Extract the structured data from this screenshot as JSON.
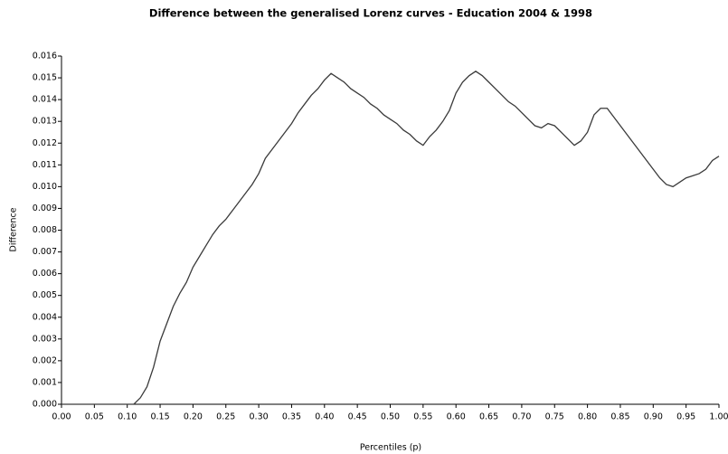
{
  "chart_data": {
    "type": "line",
    "title": "Difference between the generalised Lorenz curves - Education 2004 & 1998",
    "x_label": "Percentiles (p)",
    "y_label": "Difference",
    "color": "#3a3a3a",
    "x": [
      0,
      0.01,
      0.02,
      0.03,
      0.04,
      0.05,
      0.06,
      0.07,
      0.08,
      0.09,
      0.1,
      0.11,
      0.12,
      0.13,
      0.14,
      0.15,
      0.16,
      0.17,
      0.18,
      0.19,
      0.2,
      0.21,
      0.22,
      0.23,
      0.24,
      0.25,
      0.26,
      0.27,
      0.28,
      0.29,
      0.3,
      0.31,
      0.32,
      0.33,
      0.34,
      0.35,
      0.36,
      0.37,
      0.38,
      0.39,
      0.4,
      0.41,
      0.42,
      0.43,
      0.44,
      0.45,
      0.46,
      0.47,
      0.48,
      0.49,
      0.5,
      0.51,
      0.52,
      0.53,
      0.54,
      0.55,
      0.56,
      0.57,
      0.58,
      0.59,
      0.6,
      0.61,
      0.62,
      0.63,
      0.64,
      0.65,
      0.66,
      0.67,
      0.68,
      0.69,
      0.7,
      0.71,
      0.72,
      0.73,
      0.74,
      0.75,
      0.76,
      0.77,
      0.78,
      0.79,
      0.8,
      0.81,
      0.82,
      0.83,
      0.84,
      0.85,
      0.86,
      0.87,
      0.88,
      0.89,
      0.9,
      0.91,
      0.92,
      0.93,
      0.94,
      0.95,
      0.96,
      0.97,
      0.98,
      0.99,
      1
    ],
    "values": [
      0,
      0,
      0,
      0,
      0,
      0,
      0,
      0,
      0,
      0,
      0,
      0,
      0.0003,
      0.0008,
      0.0017,
      0.0029,
      0.0037,
      0.0045,
      0.0051,
      0.0056,
      0.0063,
      0.0068,
      0.0073,
      0.0078,
      0.0082,
      0.0085,
      0.0089,
      0.0093,
      0.0097,
      0.0101,
      0.0106,
      0.0113,
      0.0117,
      0.0121,
      0.0125,
      0.0129,
      0.0134,
      0.0138,
      0.0142,
      0.0145,
      0.0149,
      0.0152,
      0.015,
      0.0148,
      0.0145,
      0.0143,
      0.0141,
      0.0138,
      0.0136,
      0.0133,
      0.0131,
      0.0129,
      0.0126,
      0.0124,
      0.0121,
      0.0119,
      0.0123,
      0.0126,
      0.013,
      0.0135,
      0.0143,
      0.0148,
      0.0151,
      0.0153,
      0.0151,
      0.0148,
      0.0145,
      0.0142,
      0.0139,
      0.0137,
      0.0134,
      0.0131,
      0.0128,
      0.0127,
      0.0129,
      0.0128,
      0.0125,
      0.0122,
      0.0119,
      0.0121,
      0.0125,
      0.0133,
      0.0136,
      0.0136,
      0.0132,
      0.0128,
      0.0124,
      0.012,
      0.0116,
      0.0112,
      0.0108,
      0.0104,
      0.0101,
      0.01,
      0.0102,
      0.0104,
      0.0105,
      0.0106,
      0.0108,
      0.0112,
      0.0114
    ],
    "xlim": [
      0,
      1
    ],
    "ylim": [
      0,
      0.016
    ],
    "xticks": [
      {
        "value": 0,
        "label": "0.00"
      },
      {
        "value": 0.05,
        "label": "0.05"
      },
      {
        "value": 0.1,
        "label": "0.10"
      },
      {
        "value": 0.15,
        "label": "0.15"
      },
      {
        "value": 0.2,
        "label": "0.20"
      },
      {
        "value": 0.25,
        "label": "0.25"
      },
      {
        "value": 0.3,
        "label": "0.30"
      },
      {
        "value": 0.35,
        "label": "0.35"
      },
      {
        "value": 0.4,
        "label": "0.40"
      },
      {
        "value": 0.45,
        "label": "0.45"
      },
      {
        "value": 0.5,
        "label": "0.50"
      },
      {
        "value": 0.55,
        "label": "0.55"
      },
      {
        "value": 0.6,
        "label": "0.60"
      },
      {
        "value": 0.65,
        "label": "0.65"
      },
      {
        "value": 0.7,
        "label": "0.70"
      },
      {
        "value": 0.75,
        "label": "0.75"
      },
      {
        "value": 0.8,
        "label": "0.80"
      },
      {
        "value": 0.85,
        "label": "0.85"
      },
      {
        "value": 0.9,
        "label": "0.90"
      },
      {
        "value": 0.95,
        "label": "0.95"
      },
      {
        "value": 1,
        "label": "1.00"
      }
    ],
    "yticks": [
      {
        "value": 0,
        "label": "0.000"
      },
      {
        "value": 0.001,
        "label": "0.001"
      },
      {
        "value": 0.002,
        "label": "0.002"
      },
      {
        "value": 0.003,
        "label": "0.003"
      },
      {
        "value": 0.004,
        "label": "0.004"
      },
      {
        "value": 0.005,
        "label": "0.005"
      },
      {
        "value": 0.006,
        "label": "0.006"
      },
      {
        "value": 0.007,
        "label": "0.007"
      },
      {
        "value": 0.008,
        "label": "0.008"
      },
      {
        "value": 0.009,
        "label": "0.009"
      },
      {
        "value": 0.01,
        "label": "0.010"
      },
      {
        "value": 0.011,
        "label": "0.011"
      },
      {
        "value": 0.012,
        "label": "0.012"
      },
      {
        "value": 0.013,
        "label": "0.013"
      },
      {
        "value": 0.014,
        "label": "0.014"
      },
      {
        "value": 0.015,
        "label": "0.015"
      },
      {
        "value": 0.016,
        "label": "0.016"
      }
    ]
  }
}
